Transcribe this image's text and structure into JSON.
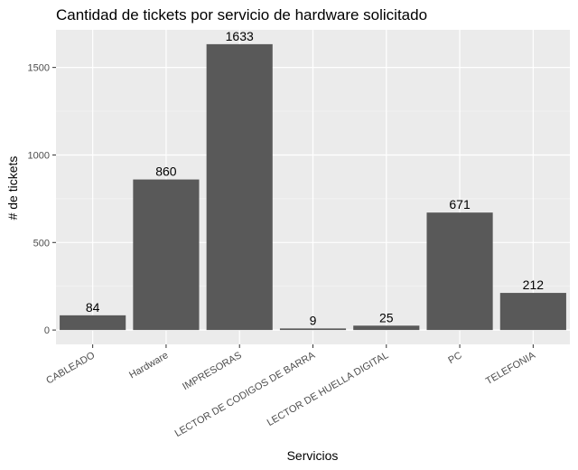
{
  "chart_data": {
    "type": "bar",
    "title": "Cantidad de tickets por servicio de hardware solicitado",
    "xlabel": "Servicios",
    "ylabel": "# de tickets",
    "categories": [
      "CABLEADO",
      "Hardware",
      "IMPRESORAS",
      "LECTOR DE CODIGOS DE BARRA",
      "LECTOR DE HUELLA DIGITAL",
      "PC",
      "TELEFONIA"
    ],
    "values": [
      84,
      860,
      1633,
      9,
      25,
      671,
      212
    ],
    "data_labels": [
      "84",
      "860",
      "1633",
      "9",
      "25",
      "671",
      "212"
    ],
    "yticks": [
      0,
      500,
      1000,
      1500
    ],
    "ytick_labels": [
      "0",
      "500",
      "1000",
      "1500"
    ],
    "ylim": [
      -82,
      1715
    ],
    "grid": true,
    "legend": "none",
    "colors": {
      "bar": "#595959",
      "panel": "#ebebeb",
      "grid_major": "#ffffff",
      "grid_minor": "#f5f5f5"
    }
  }
}
